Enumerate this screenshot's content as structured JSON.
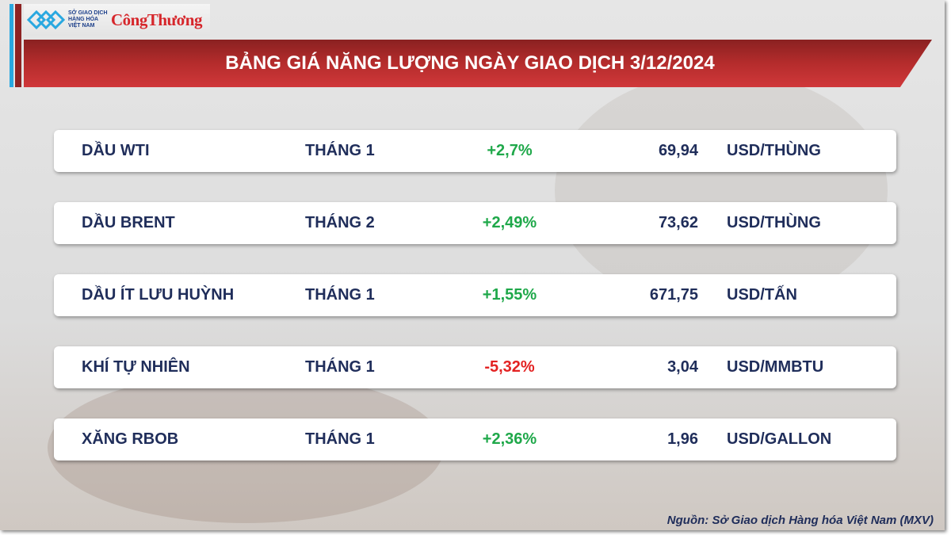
{
  "logo": {
    "mxv_text": "SỞ GIAO DỊCH HÀNG HÓA VIỆT NAM",
    "brand": "CôngThương"
  },
  "title": "BẢNG GIÁ NĂNG LƯỢNG NGÀY GIAO DỊCH 3/12/2024",
  "colors": {
    "up": "#1fa84a",
    "down": "#e32222",
    "text": "#1f2d5a",
    "banner": "#b52c2c"
  },
  "rows": [
    {
      "name": "DẦU WTI",
      "month": "THÁNG 1",
      "change": "+2,7%",
      "direction": "up",
      "price": "69,94",
      "unit": "USD/THÙNG"
    },
    {
      "name": "DẦU BRENT",
      "month": "THÁNG 2",
      "change": "+2,49%",
      "direction": "up",
      "price": "73,62",
      "unit": "USD/THÙNG"
    },
    {
      "name": "DẦU ÍT LƯU HUỲNH",
      "month": "THÁNG 1",
      "change": "+1,55%",
      "direction": "up",
      "price": "671,75",
      "unit": "USD/TẤN"
    },
    {
      "name": "KHÍ TỰ NHIÊN",
      "month": "THÁNG 1",
      "change": "-5,32%",
      "direction": "down",
      "price": "3,04",
      "unit": "USD/MMBTU"
    },
    {
      "name": "XĂNG RBOB",
      "month": "THÁNG 1",
      "change": "+2,36%",
      "direction": "up",
      "price": "1,96",
      "unit": "USD/GALLON"
    }
  ],
  "source": "Nguồn: Sở Giao dịch Hàng hóa Việt Nam (MXV)"
}
